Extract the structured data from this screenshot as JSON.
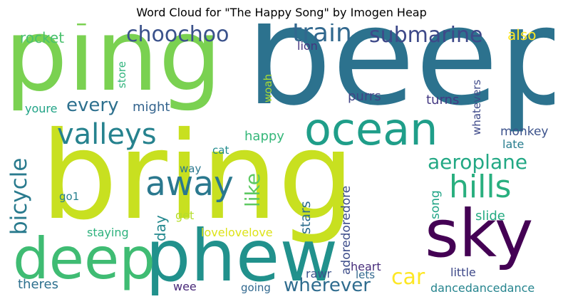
{
  "title": "Word Cloud for \"The Happy Song\" by Imogen Heap",
  "words": {
    "beep": "beep",
    "bring": "bring",
    "ping": "ping",
    "phew": "phew",
    "sky": "sky",
    "deep": "deep",
    "ocean": "ocean",
    "valleys": "valleys",
    "hills": "hills",
    "away": "away",
    "train": "train",
    "submarine": "submarine",
    "choochoo": "choochoo",
    "aeroplane": "aeroplane",
    "bicycle": "bicycle",
    "wherever": "wherever",
    "car": "car",
    "like": "like",
    "every": "every",
    "rocket": "rocket",
    "also": "also",
    "lion": "lion",
    "store": "store",
    "woah": "woah",
    "purrs": "purrs",
    "turns": "turns",
    "whatevers": "whatevers",
    "youre": "youre",
    "might": "might",
    "monkey": "monkey",
    "late": "late",
    "happy": "happy",
    "cat": "cat",
    "way": "way",
    "day": "day",
    "stars": "stars",
    "adoredoredore": "adoredoredore",
    "song": "song",
    "slide": "slide",
    "go1": "go1",
    "get": "get",
    "staying": "staying",
    "lovelovelove": "lovelovelove",
    "heart": "heart",
    "rawr": "rawr",
    "lets": "lets",
    "little": "little",
    "theres": "theres",
    "wee": "wee",
    "going": "going",
    "dancedancedance": "dancedancedance"
  },
  "colors": {
    "dark_purple": "#440154",
    "purple": "#482878",
    "indigo": "#3e4989",
    "blue": "#31688e",
    "teal_blue": "#26828e",
    "teal": "#1f9e89",
    "green": "#35b779",
    "light_green": "#6ece58",
    "lime": "#b5de2b",
    "yellow": "#fde725"
  }
}
